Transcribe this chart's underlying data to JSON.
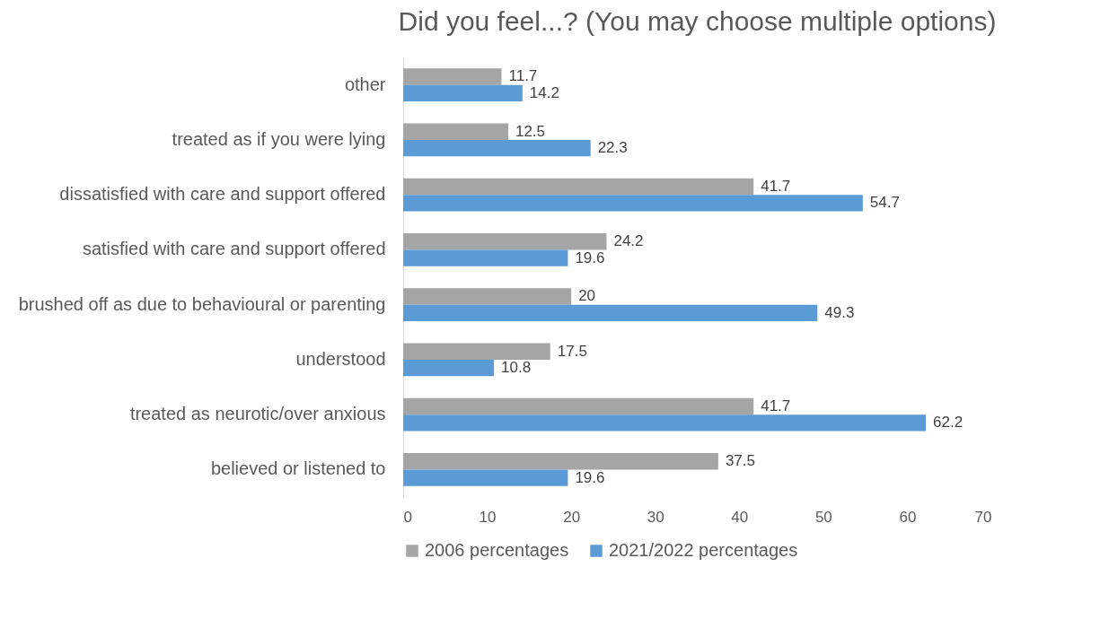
{
  "chart_data": {
    "type": "bar",
    "orientation": "horizontal",
    "title": "Did you feel...? (You may choose multiple options)",
    "categories": [
      "other",
      "treated as if you were lying",
      "dissatisfied with care and support offered",
      "satisfied with care and support offered",
      "brushed off as due to behavioural or parenting",
      "understood",
      "treated as neurotic/over anxious",
      "believed or listened to"
    ],
    "series": [
      {
        "name": "2006 percentages",
        "color": "#a5a5a5",
        "values": [
          11.7,
          12.5,
          41.7,
          24.2,
          20,
          17.5,
          41.7,
          37.5
        ]
      },
      {
        "name": "2021/2022 percentages",
        "color": "#5b9bd5",
        "values": [
          14.2,
          22.3,
          54.7,
          19.6,
          49.3,
          10.8,
          62.2,
          19.6
        ]
      }
    ],
    "xlim": [
      0,
      70
    ],
    "xticks": [
      0,
      10,
      20,
      30,
      40,
      50,
      60,
      70
    ],
    "grid": false,
    "legend": "bottom",
    "data_labels": true
  }
}
